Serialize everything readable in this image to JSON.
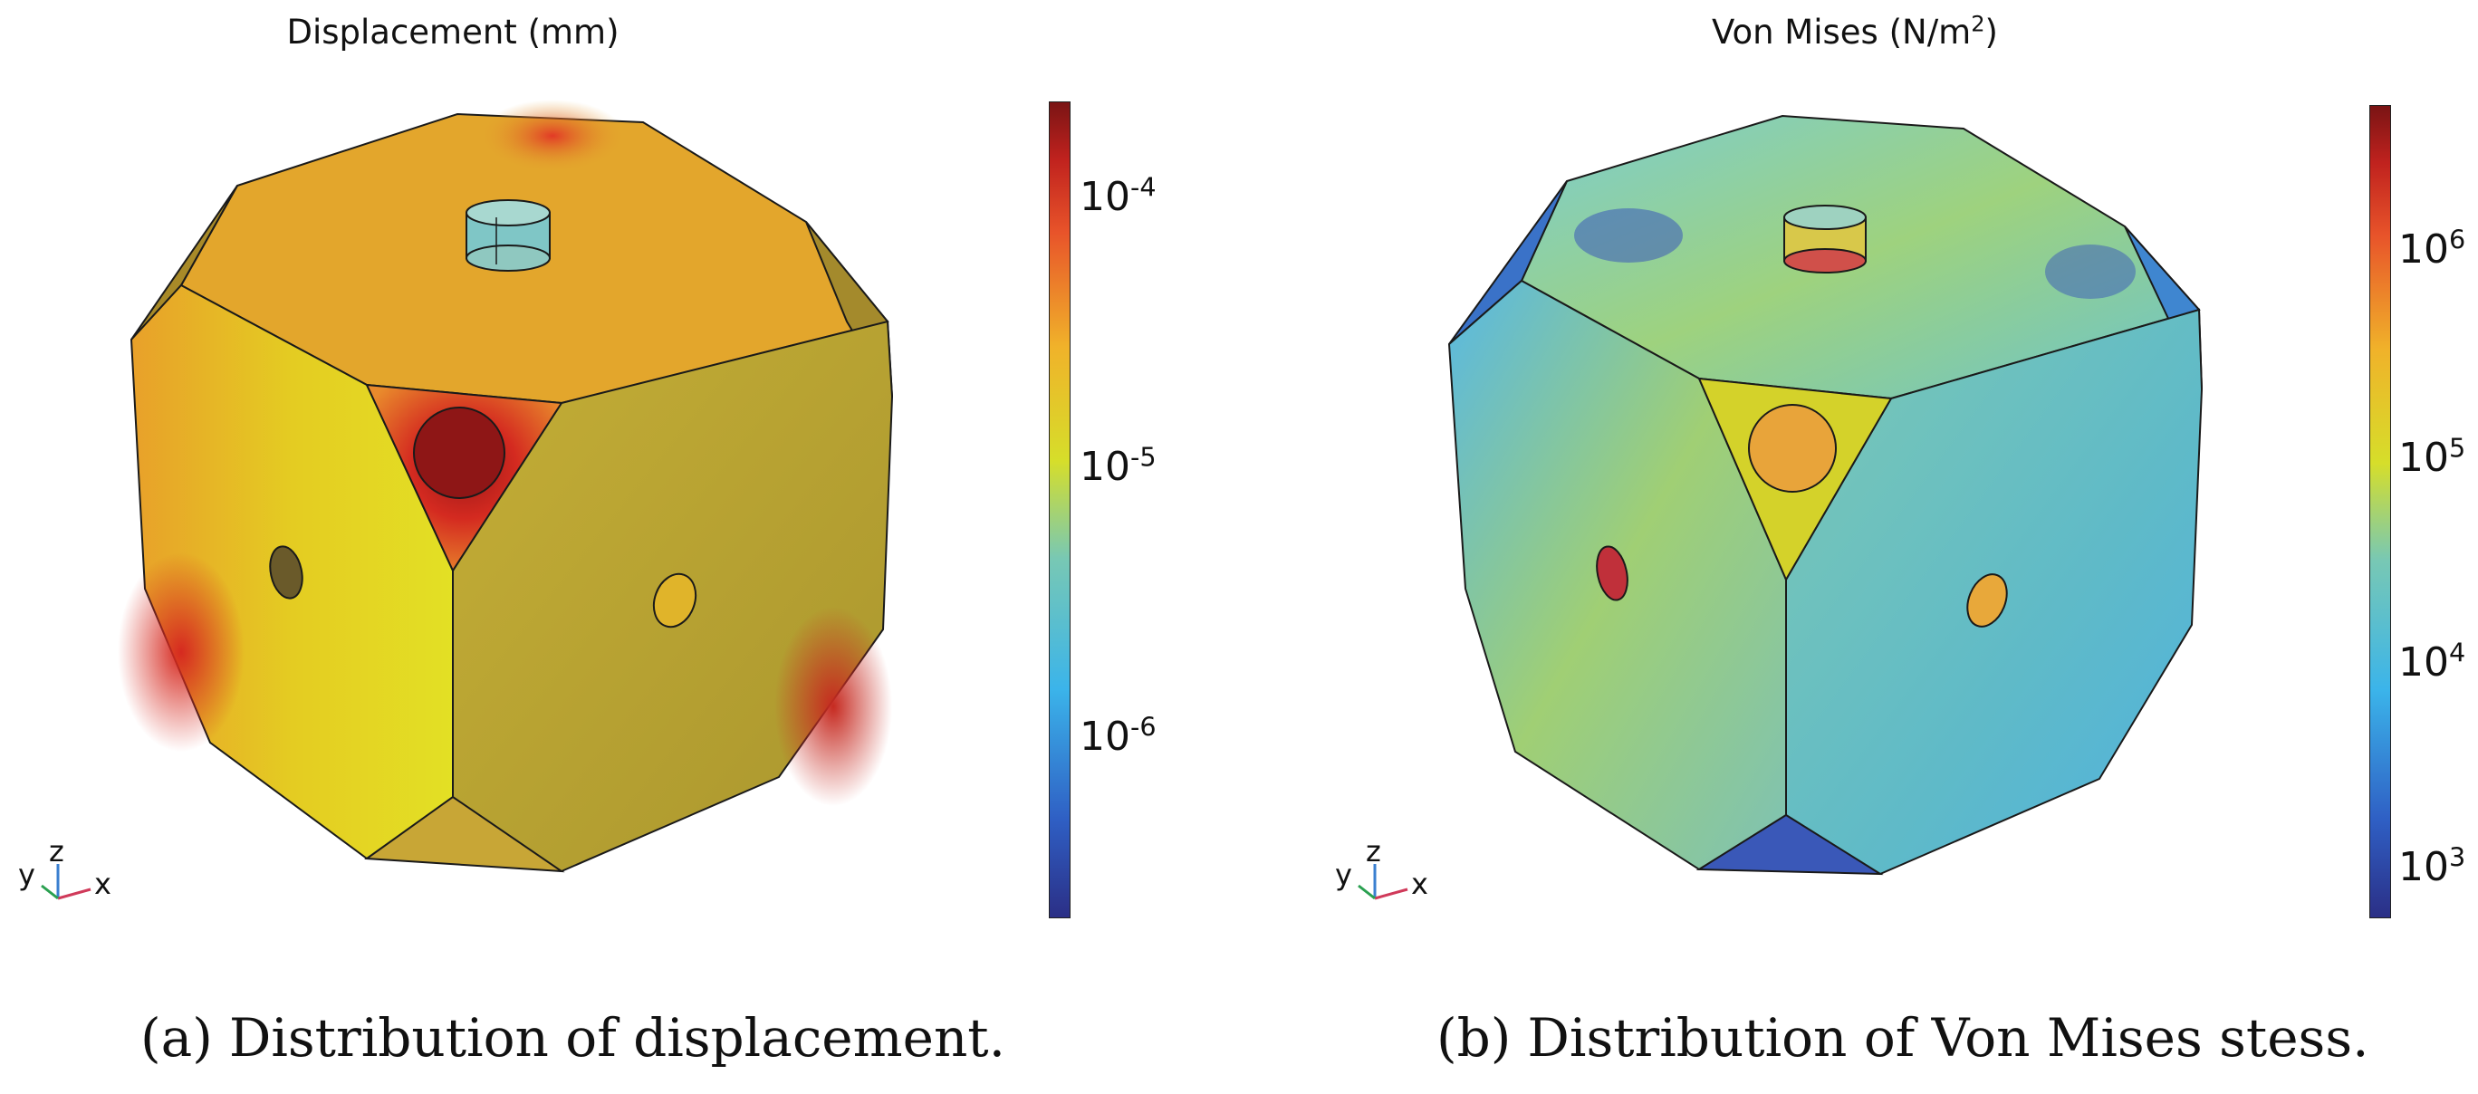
{
  "panels": [
    {
      "id": "a",
      "title": "Displacement (mm)",
      "caption_label": "(a)",
      "caption_text": "Distribution of displacement.",
      "colorbar_ticks": [
        {
          "base": "10",
          "exp": "-4"
        },
        {
          "base": "10",
          "exp": "-5"
        },
        {
          "base": "10",
          "exp": "-6"
        }
      ],
      "triad": {
        "y": "y",
        "z": "z",
        "x": "x"
      }
    },
    {
      "id": "b",
      "title_main": "Von Mises (N/m",
      "title_exp": "2",
      "title_close": ")",
      "caption_label": "(b)",
      "caption_text": "Distribution of Von Mises stess.",
      "colorbar_ticks": [
        {
          "base": "10",
          "exp": "6"
        },
        {
          "base": "10",
          "exp": "5"
        },
        {
          "base": "10",
          "exp": "4"
        },
        {
          "base": "10",
          "exp": "3"
        }
      ],
      "triad": {
        "y": "y",
        "z": "z",
        "x": "x"
      }
    }
  ],
  "colors": {
    "colormap": [
      "#2b2f86",
      "#2f5fc4",
      "#3bb4ea",
      "#78c8b4",
      "#d6de2a",
      "#f0b22a",
      "#e8542a",
      "#c0221e",
      "#7a1414"
    ],
    "edge": "#1a1a1a"
  }
}
